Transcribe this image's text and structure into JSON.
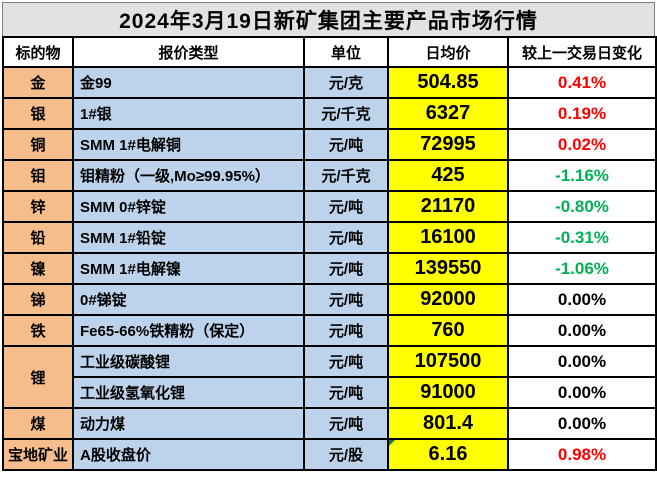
{
  "title": "2024年3月19日新矿集团主要产品市场行情",
  "table": {
    "columns": [
      "标的物",
      "报价类型",
      "单位",
      "日均价",
      "较上一交易日变化"
    ],
    "rows": [
      {
        "subject": "金",
        "quote": "金99",
        "unit": "元/克",
        "price": "504.85",
        "change": "0.41%",
        "trend": "up"
      },
      {
        "subject": "银",
        "quote": "1#银",
        "unit": "元/千克",
        "price": "6327",
        "change": "0.19%",
        "trend": "up"
      },
      {
        "subject": "铜",
        "quote": "SMM 1#电解铜",
        "unit": "元/吨",
        "price": "72995",
        "change": "0.02%",
        "trend": "up"
      },
      {
        "subject": "钼",
        "quote": "钼精粉（一级,Mo≥99.95%）",
        "unit": "元/千克",
        "price": "425",
        "change": "-1.16%",
        "trend": "down"
      },
      {
        "subject": "锌",
        "quote": "SMM 0#锌锭",
        "unit": "元/吨",
        "price": "21170",
        "change": "-0.80%",
        "trend": "down"
      },
      {
        "subject": "铅",
        "quote": "SMM 1#铅锭",
        "unit": "元/吨",
        "price": "16100",
        "change": "-0.31%",
        "trend": "down"
      },
      {
        "subject": "镍",
        "quote": "SMM 1#电解镍",
        "unit": "元/吨",
        "price": "139550",
        "change": "-1.06%",
        "trend": "down"
      },
      {
        "subject": "锑",
        "quote": "0#锑锭",
        "unit": "元/吨",
        "price": "92000",
        "change": "0.00%",
        "trend": "flat"
      },
      {
        "subject": "铁",
        "quote": "Fe65-66%铁精粉（保定）",
        "unit": "元/吨",
        "price": "760",
        "change": "0.00%",
        "trend": "flat"
      },
      {
        "subject": "锂",
        "subject_rowspan": 2,
        "quote": "工业级碳酸锂",
        "unit": "元/吨",
        "price": "107500",
        "change": "0.00%",
        "trend": "flat"
      },
      {
        "subject": null,
        "thin_top": true,
        "quote": "工业级氢氧化锂",
        "unit": "元/吨",
        "price": "91000",
        "change": "0.00%",
        "trend": "flat"
      },
      {
        "subject": "煤",
        "quote": "动力煤",
        "unit": "元/吨",
        "price": "801.4",
        "change": "0.00%",
        "trend": "flat"
      },
      {
        "subject": "宝地矿业",
        "quote": "A股收盘价",
        "unit": "元/股",
        "price": "6.16",
        "change": "0.98%",
        "trend": "up",
        "price_flag": true
      }
    ]
  },
  "colors": {
    "title_bg": "#E2E2E2",
    "subject_bg": "#F5BD8C",
    "type_bg": "#BDD3EB",
    "price_bg": "#FFFF00",
    "up_text": "#FF0000",
    "down_text": "#00B155",
    "flat_text": "#000000",
    "grid_border": "#000000",
    "cell_flag": "#1E7B3C"
  }
}
